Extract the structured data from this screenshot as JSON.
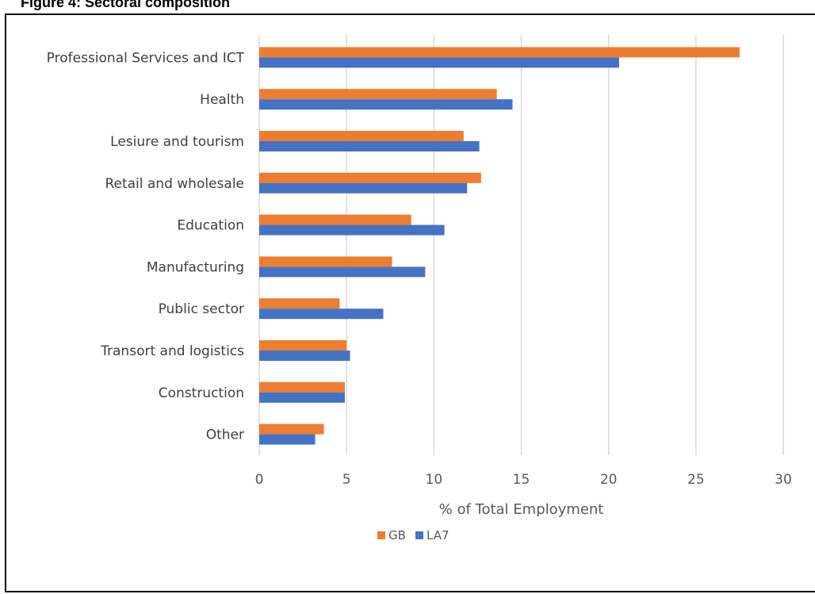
{
  "figure": {
    "title": "Figure 4: Sectoral composition"
  },
  "colors": {
    "gridline": "#d9d9d9",
    "GB": "#ED7D31",
    "LA7": "#4472C4"
  },
  "chart_data": {
    "type": "bar",
    "orientation": "horizontal",
    "title": "",
    "xlabel": "% of Total  Employment",
    "ylabel": "",
    "xlim": [
      0,
      30
    ],
    "xticks": [
      0,
      5,
      10,
      15,
      20,
      25,
      30
    ],
    "grid": true,
    "legend_position": "bottom",
    "categories": [
      "Professional Services and ICT",
      "Health",
      "Lesiure and tourism",
      "Retail and wholesale",
      "Education",
      "Manufacturing",
      "Public sector",
      "Transort and logistics",
      "Construction",
      "Other"
    ],
    "series": [
      {
        "name": "GB",
        "values": [
          27.5,
          13.6,
          11.7,
          12.7,
          8.7,
          7.6,
          4.6,
          5.0,
          4.9,
          3.7
        ]
      },
      {
        "name": "LA7",
        "values": [
          20.6,
          14.5,
          12.6,
          11.9,
          10.6,
          9.5,
          7.1,
          5.2,
          4.9,
          3.2
        ]
      }
    ]
  }
}
